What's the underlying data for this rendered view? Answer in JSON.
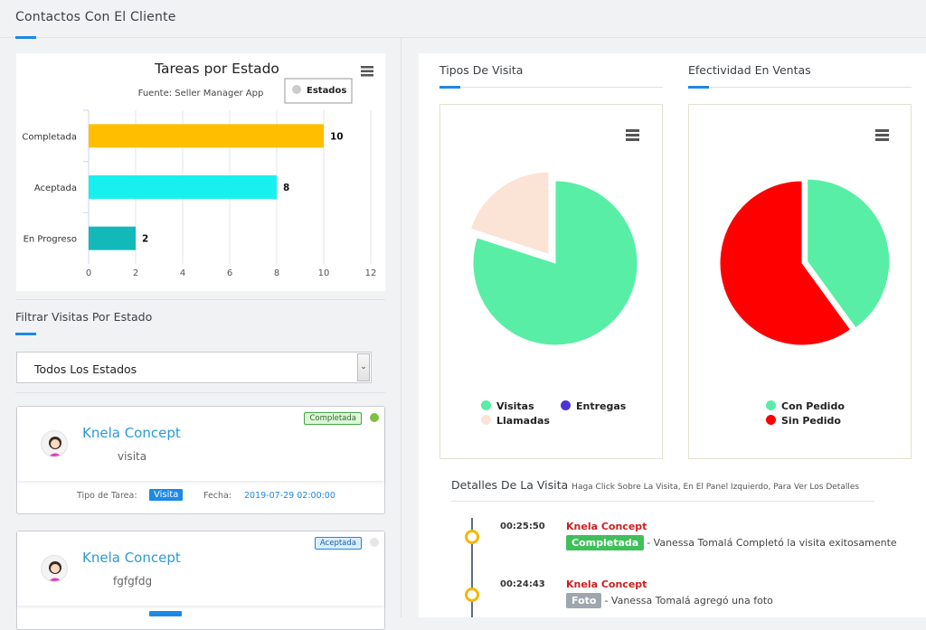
{
  "page": {
    "title": "Contactos Con El Cliente"
  },
  "bar_chart": {
    "menu_icon": "hamburger-menu-icon",
    "chart_data": {
      "type": "bar",
      "title": "Tareas por Estado",
      "subtitle": "Fuente: Seller Manager App",
      "categories": [
        "Completada",
        "Aceptada",
        "En Progreso"
      ],
      "series": [
        {
          "name": "Estados",
          "values": [
            10,
            8,
            2
          ],
          "colors": [
            "#ffbf00",
            "#18f0f0",
            "#13b9b9"
          ]
        }
      ],
      "xlim": [
        0,
        12
      ],
      "ticks": [
        "0",
        "2",
        "4",
        "6",
        "8",
        "10",
        "12"
      ],
      "orientation": "horizontal",
      "grid": true,
      "legend_placement": "top-right"
    }
  },
  "filter": {
    "label": "Filtrar Visitas Por Estado",
    "selected": "Todos Los Estados"
  },
  "visits": [
    {
      "name": "Knela Concept",
      "description": "visita",
      "state": "Completada",
      "state_color": "#7cc142",
      "type_label": "Tipo de Tarea:",
      "type": "Visita",
      "date_label": "Fecha:",
      "date": "2019-07-29 02:00:00"
    },
    {
      "name": "Knela Concept",
      "description": "fgfgfdg",
      "state": "Aceptada",
      "state_color": "#e6e6e6"
    }
  ],
  "tipos_visita": {
    "title": "Tipos De Visita",
    "chart_data": {
      "type": "pie",
      "slices": [
        {
          "name": "Visitas",
          "value": 80,
          "color": "#58eea5"
        },
        {
          "name": "Entregas",
          "value": 0,
          "color": "#4d35d4"
        },
        {
          "name": "Llamadas",
          "value": 20,
          "color": "#fbe3d6"
        }
      ]
    }
  },
  "efectividad": {
    "title": "Efectividad En Ventas",
    "chart_data": {
      "type": "pie",
      "slices": [
        {
          "name": "Con Pedido",
          "value": 40,
          "color": "#58eea5"
        },
        {
          "name": "Sin Pedido",
          "value": 60,
          "color": "#ff0000"
        }
      ]
    }
  },
  "details": {
    "title": "Detalles De La Visita",
    "hint": "Haga Click Sobre La Visita, En El Panel Izquierdo, Para Ver Los Detalles",
    "events": [
      {
        "time": "00:25:50",
        "name": "Knela Concept",
        "badge": "Completada",
        "badge_color": "#3fbf5a",
        "text": "- Vanessa Tomalá Completó la visita exitosamente"
      },
      {
        "time": "00:24:43",
        "name": "Knela Concept",
        "badge": "Foto",
        "badge_color": "#9fa6ad",
        "text": "- Vanessa Tomalá agregó una foto"
      }
    ]
  }
}
